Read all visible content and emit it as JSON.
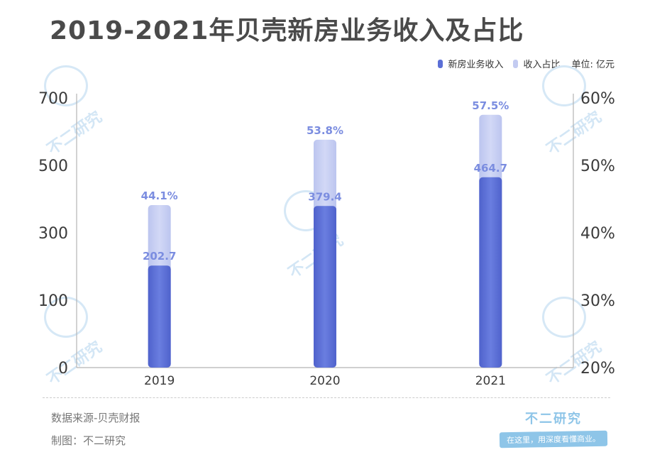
{
  "page": {
    "title": "2019-2021年贝壳新房业务收入及占比",
    "unit_label": "单位: 亿元",
    "source": "数据来源-贝壳财报",
    "maker": "制图：不二研究",
    "brand_name": "不二研究",
    "brand_slogan": "在这里，用深度看懂商业。",
    "watermark": "不二研究"
  },
  "chart_data": {
    "type": "bar",
    "categories": [
      "2019",
      "2020",
      "2021"
    ],
    "series": [
      {
        "name": "新房业务收入",
        "axis": "left",
        "values": [
          202.7,
          379.4,
          464.7
        ],
        "labels": [
          "202.7",
          "379.4",
          "464.7"
        ],
        "color": "#5b6fd6"
      },
      {
        "name": "收入占比",
        "axis": "right",
        "values": [
          44.1,
          53.8,
          57.5
        ],
        "labels": [
          "44.1%",
          "53.8%",
          "57.5%"
        ],
        "color": "#c3cbf1"
      }
    ],
    "y_left": {
      "ticks": [
        0,
        100,
        300,
        500,
        700
      ],
      "tick_labels": [
        "0",
        "100",
        "300",
        "500",
        "700"
      ]
    },
    "y_right": {
      "ticks": [
        20,
        30,
        40,
        50,
        60
      ],
      "tick_labels": [
        "20%",
        "30%",
        "40%",
        "50%",
        "60%"
      ],
      "range": [
        20,
        60
      ]
    },
    "label_color": "#7b8de0",
    "legend_position": "top-right",
    "grid": false
  }
}
